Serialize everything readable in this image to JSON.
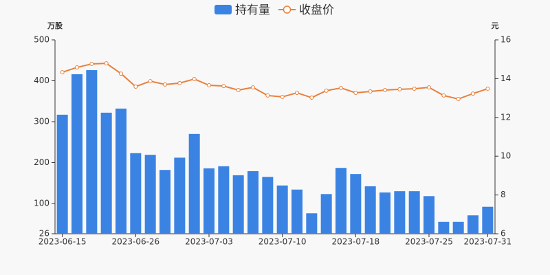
{
  "chart_data": {
    "type": "bar",
    "categories": [
      "2023-06-15",
      null,
      null,
      null,
      null,
      "2023-06-26",
      null,
      null,
      null,
      null,
      "2023-07-03",
      null,
      null,
      null,
      null,
      "2023-07-10",
      null,
      null,
      null,
      null,
      "2023-07-18",
      null,
      null,
      null,
      null,
      "2023-07-25",
      null,
      null,
      null,
      "2023-07-31"
    ],
    "series": [
      {
        "name": "持有量",
        "type": "bar",
        "color": "#3a83e3",
        "values": [
          317,
          416,
          426,
          322,
          332,
          223,
          219,
          182,
          212,
          270,
          186,
          191,
          169,
          179,
          165,
          144,
          134,
          76,
          123,
          187,
          172,
          142,
          127,
          130,
          130,
          118,
          55,
          55,
          71,
          92
        ]
      },
      {
        "name": "收盘价",
        "type": "line",
        "axis": "y2",
        "color": "#e8803c",
        "values": [
          14.33,
          14.58,
          14.76,
          14.79,
          14.26,
          13.59,
          13.87,
          13.7,
          13.77,
          13.98,
          13.66,
          13.62,
          13.41,
          13.55,
          13.13,
          13.06,
          13.27,
          13.02,
          13.38,
          13.52,
          13.27,
          13.34,
          13.41,
          13.45,
          13.48,
          13.55,
          13.13,
          12.95,
          13.23,
          13.48
        ]
      }
    ],
    "y_label": "万股",
    "y2_label": "元",
    "ylim": [
      26,
      500
    ],
    "yticks": [
      26,
      100,
      200,
      300,
      400,
      500
    ],
    "y2lim": [
      6,
      16
    ],
    "y2ticks": [
      6,
      8,
      10,
      12,
      14,
      16
    ]
  }
}
